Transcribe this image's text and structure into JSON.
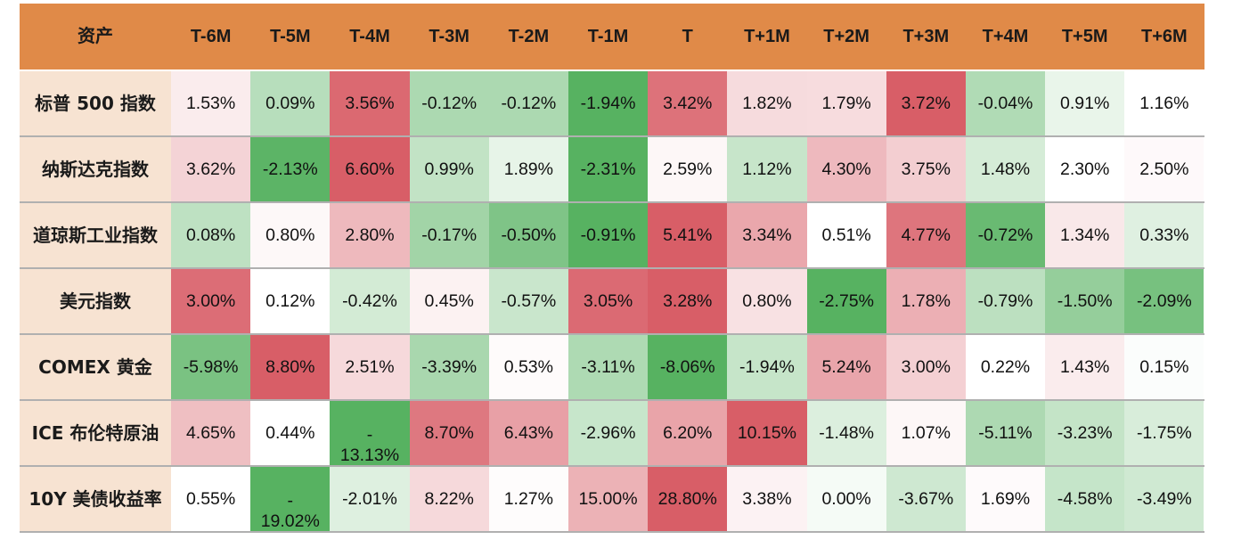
{
  "table": {
    "headers": [
      "资产",
      "T-6M",
      "T-5M",
      "T-4M",
      "T-3M",
      "T-2M",
      "T-1M",
      "T",
      "T+1M",
      "T+2M",
      "T+3M",
      "T+4M",
      "T+5M",
      "T+6M"
    ],
    "rows": [
      {
        "asset": "标普 500 指数",
        "values": [
          "1.53%",
          "0.09%",
          "3.56%",
          "-0.12%",
          "-0.12%",
          "-1.94%",
          "3.42%",
          "1.82%",
          "1.79%",
          "3.72%",
          "-0.04%",
          "0.91%",
          "1.16%"
        ]
      },
      {
        "asset": "纳斯达克指数",
        "values": [
          "3.62%",
          "-2.13%",
          "6.60%",
          "0.99%",
          "1.89%",
          "-2.31%",
          "2.59%",
          "1.12%",
          "4.30%",
          "3.75%",
          "1.48%",
          "2.30%",
          "2.50%"
        ]
      },
      {
        "asset": "道琼斯工业指数",
        "values": [
          "0.08%",
          "0.80%",
          "2.80%",
          "-0.17%",
          "-0.50%",
          "-0.91%",
          "5.41%",
          "3.34%",
          "0.51%",
          "4.77%",
          "-0.72%",
          "1.34%",
          "0.33%"
        ]
      },
      {
        "asset": "美元指数",
        "values": [
          "3.00%",
          "0.12%",
          "-0.42%",
          "0.45%",
          "-0.57%",
          "3.05%",
          "3.28%",
          "0.80%",
          "-2.75%",
          "1.78%",
          "-0.79%",
          "-1.50%",
          "-2.09%"
        ]
      },
      {
        "asset": "COMEX 黄金",
        "values": [
          "-5.98%",
          "8.80%",
          "2.51%",
          "-3.39%",
          "0.53%",
          "-3.11%",
          "-8.06%",
          "-1.94%",
          "5.24%",
          "3.00%",
          "0.22%",
          "1.43%",
          "0.15%"
        ]
      },
      {
        "asset": "ICE 布伦特原油",
        "values": [
          "4.65%",
          "0.44%",
          "-\n13.13%",
          "8.70%",
          "6.43%",
          "-2.96%",
          "6.20%",
          "10.15%",
          "-1.48%",
          "1.07%",
          "-5.11%",
          "-3.23%",
          "-1.75%"
        ]
      },
      {
        "asset": "10Y 美债收益率",
        "values": [
          "0.55%",
          "-\n19.02%",
          "-2.01%",
          "8.22%",
          "1.27%",
          "15.00%",
          "28.80%",
          "3.38%",
          "0.00%",
          "-3.67%",
          "1.69%",
          "-4.58%",
          "-3.49%"
        ]
      }
    ]
  },
  "colors": {
    "header_bg": "#e08a48",
    "asset_bg": "#f7e3d2",
    "heat_green": "#57b261",
    "heat_white": "#ffffff",
    "heat_red": "#d6555f"
  }
}
